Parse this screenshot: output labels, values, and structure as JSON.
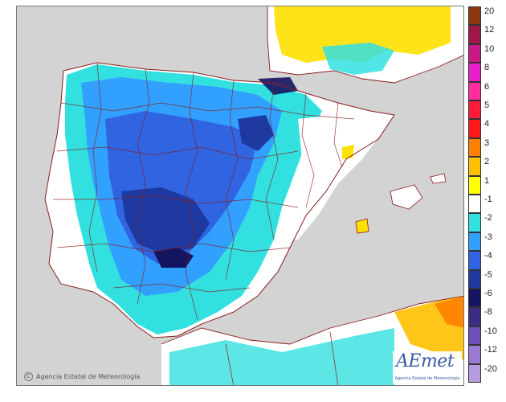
{
  "map": {
    "copyright": "Agencia Estatal de Meteorología",
    "logo_text": "AEmet",
    "logo_subtitle": "Agencia Estatal de Meteorología"
  },
  "legend": {
    "labels": [
      "20",
      "12",
      "10",
      "8",
      "6",
      "5",
      "4",
      "3",
      "2",
      "1",
      "-1",
      "-2",
      "-3",
      "-4",
      "-5",
      "-6",
      "-8",
      "-10",
      "-12",
      "-20"
    ],
    "colors": [
      "#8b3a0e",
      "#a0184a",
      "#c81a87",
      "#e81fc8",
      "#ff2ea0",
      "#ff1a3c",
      "#ff1a1a",
      "#ff8000",
      "#ffc000",
      "#ffff00",
      "#ffffff",
      "#33e0e0",
      "#32a0ff",
      "#3064e0",
      "#1e3aa0",
      "#141460",
      "#3c2c86",
      "#7050b8",
      "#9a7ad0",
      "#b69ae0"
    ]
  },
  "colors": {
    "land_neutral": "#ffffff",
    "sea": "#d3d3d3",
    "border": "#8b1a1a"
  }
}
